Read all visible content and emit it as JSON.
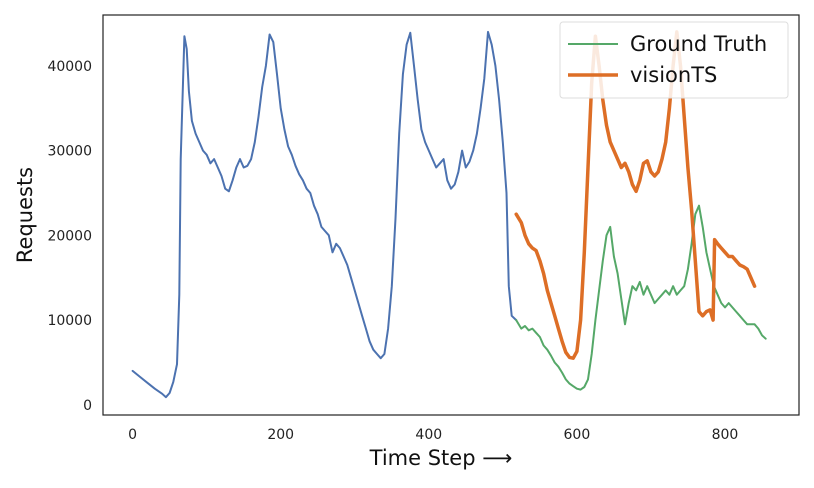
{
  "chart_data": {
    "type": "line",
    "title": "",
    "xlabel": "Time Step ⟶",
    "ylabel": "Requests",
    "xlim": [
      -40,
      900
    ],
    "ylim": [
      -1200,
      46000
    ],
    "grid": false,
    "legend_position": "top-right",
    "x_ticks": [
      0,
      200,
      400,
      600,
      800
    ],
    "y_ticks": [
      0,
      10000,
      20000,
      30000,
      40000
    ],
    "history": {
      "color": "#4c72b0",
      "points": [
        [
          0,
          4000
        ],
        [
          10,
          3300
        ],
        [
          20,
          2600
        ],
        [
          30,
          1900
        ],
        [
          40,
          1300
        ],
        [
          45,
          900
        ],
        [
          50,
          1400
        ],
        [
          55,
          2700
        ],
        [
          60,
          4800
        ],
        [
          63,
          13000
        ],
        [
          65,
          29000
        ],
        [
          68,
          38000
        ],
        [
          70,
          43500
        ],
        [
          73,
          42000
        ],
        [
          76,
          37000
        ],
        [
          80,
          33500
        ],
        [
          85,
          32000
        ],
        [
          90,
          31000
        ],
        [
          95,
          30000
        ],
        [
          100,
          29500
        ],
        [
          105,
          28500
        ],
        [
          110,
          29000
        ],
        [
          115,
          28000
        ],
        [
          120,
          27000
        ],
        [
          125,
          25500
        ],
        [
          130,
          25200
        ],
        [
          135,
          26500
        ],
        [
          140,
          28000
        ],
        [
          145,
          29000
        ],
        [
          150,
          28000
        ],
        [
          155,
          28200
        ],
        [
          160,
          29000
        ],
        [
          165,
          31000
        ],
        [
          170,
          34000
        ],
        [
          175,
          37500
        ],
        [
          180,
          40000
        ],
        [
          185,
          43700
        ],
        [
          190,
          42800
        ],
        [
          195,
          39000
        ],
        [
          200,
          35000
        ],
        [
          205,
          32500
        ],
        [
          210,
          30500
        ],
        [
          215,
          29500
        ],
        [
          220,
          28200
        ],
        [
          225,
          27200
        ],
        [
          230,
          26500
        ],
        [
          235,
          25500
        ],
        [
          240,
          25000
        ],
        [
          245,
          23500
        ],
        [
          250,
          22500
        ],
        [
          255,
          21000
        ],
        [
          260,
          20500
        ],
        [
          265,
          20000
        ],
        [
          270,
          18000
        ],
        [
          275,
          19000
        ],
        [
          280,
          18500
        ],
        [
          285,
          17500
        ],
        [
          290,
          16500
        ],
        [
          295,
          15000
        ],
        [
          300,
          13500
        ],
        [
          305,
          12000
        ],
        [
          310,
          10500
        ],
        [
          315,
          9000
        ],
        [
          320,
          7500
        ],
        [
          325,
          6500
        ],
        [
          330,
          6000
        ],
        [
          335,
          5500
        ],
        [
          340,
          6000
        ],
        [
          345,
          9000
        ],
        [
          350,
          14000
        ],
        [
          355,
          22000
        ],
        [
          360,
          32000
        ],
        [
          365,
          39000
        ],
        [
          370,
          42500
        ],
        [
          375,
          43900
        ],
        [
          380,
          40000
        ],
        [
          385,
          36000
        ],
        [
          390,
          32500
        ],
        [
          395,
          31000
        ],
        [
          400,
          30000
        ],
        [
          405,
          29000
        ],
        [
          410,
          28000
        ],
        [
          415,
          28500
        ],
        [
          420,
          29000
        ],
        [
          425,
          26500
        ],
        [
          430,
          25500
        ],
        [
          435,
          26000
        ],
        [
          440,
          27500
        ],
        [
          445,
          30000
        ],
        [
          450,
          28000
        ],
        [
          455,
          28700
        ],
        [
          460,
          30000
        ],
        [
          465,
          32000
        ],
        [
          470,
          35000
        ],
        [
          475,
          38500
        ],
        [
          480,
          44000
        ],
        [
          485,
          42500
        ],
        [
          490,
          40000
        ],
        [
          495,
          36000
        ],
        [
          500,
          31000
        ],
        [
          505,
          25000
        ],
        [
          508,
          14000
        ],
        [
          512,
          10500
        ],
        [
          518,
          10000
        ]
      ]
    },
    "series": [
      {
        "name": "Ground Truth",
        "color": "#55a868",
        "width": 2,
        "points": [
          [
            518,
            10000
          ],
          [
            525,
            9000
          ],
          [
            530,
            9300
          ],
          [
            535,
            8800
          ],
          [
            540,
            9000
          ],
          [
            545,
            8500
          ],
          [
            550,
            8000
          ],
          [
            555,
            7000
          ],
          [
            560,
            6500
          ],
          [
            565,
            5800
          ],
          [
            570,
            5000
          ],
          [
            575,
            4500
          ],
          [
            580,
            3800
          ],
          [
            585,
            3000
          ],
          [
            590,
            2500
          ],
          [
            595,
            2200
          ],
          [
            600,
            1900
          ],
          [
            605,
            1800
          ],
          [
            610,
            2100
          ],
          [
            615,
            3000
          ],
          [
            620,
            6000
          ],
          [
            625,
            10000
          ],
          [
            630,
            13500
          ],
          [
            635,
            17000
          ],
          [
            640,
            20000
          ],
          [
            645,
            21000
          ],
          [
            650,
            17500
          ],
          [
            655,
            15500
          ],
          [
            660,
            12500
          ],
          [
            665,
            9500
          ],
          [
            670,
            12000
          ],
          [
            675,
            14000
          ],
          [
            680,
            13500
          ],
          [
            685,
            14500
          ],
          [
            690,
            13000
          ],
          [
            695,
            14000
          ],
          [
            700,
            13000
          ],
          [
            705,
            12000
          ],
          [
            710,
            12500
          ],
          [
            715,
            13000
          ],
          [
            720,
            13500
          ],
          [
            725,
            13000
          ],
          [
            730,
            14000
          ],
          [
            735,
            13000
          ],
          [
            740,
            13500
          ],
          [
            745,
            14000
          ],
          [
            750,
            16000
          ],
          [
            755,
            19000
          ],
          [
            760,
            22500
          ],
          [
            765,
            23500
          ],
          [
            770,
            21000
          ],
          [
            775,
            18000
          ],
          [
            780,
            16000
          ],
          [
            785,
            14000
          ],
          [
            790,
            13000
          ],
          [
            795,
            12000
          ],
          [
            800,
            11500
          ],
          [
            805,
            12000
          ],
          [
            810,
            11500
          ],
          [
            815,
            11000
          ],
          [
            820,
            10500
          ],
          [
            825,
            10000
          ],
          [
            830,
            9500
          ],
          [
            835,
            9500
          ],
          [
            840,
            9500
          ],
          [
            845,
            9000
          ],
          [
            850,
            8200
          ],
          [
            855,
            7800
          ]
        ]
      },
      {
        "name": "visionTS",
        "color": "#dd6e26",
        "width": 3.5,
        "points": [
          [
            518,
            22500
          ],
          [
            525,
            21500
          ],
          [
            530,
            20000
          ],
          [
            535,
            19000
          ],
          [
            540,
            18500
          ],
          [
            545,
            18200
          ],
          [
            550,
            17000
          ],
          [
            555,
            15500
          ],
          [
            560,
            13500
          ],
          [
            565,
            12000
          ],
          [
            570,
            10500
          ],
          [
            575,
            9000
          ],
          [
            580,
            7500
          ],
          [
            585,
            6200
          ],
          [
            590,
            5600
          ],
          [
            595,
            5500
          ],
          [
            600,
            6300
          ],
          [
            605,
            10000
          ],
          [
            610,
            18000
          ],
          [
            615,
            28000
          ],
          [
            620,
            38000
          ],
          [
            625,
            43500
          ],
          [
            630,
            40000
          ],
          [
            635,
            36000
          ],
          [
            640,
            33000
          ],
          [
            645,
            31000
          ],
          [
            650,
            30000
          ],
          [
            655,
            29000
          ],
          [
            660,
            28000
          ],
          [
            665,
            28500
          ],
          [
            670,
            27500
          ],
          [
            675,
            26000
          ],
          [
            680,
            25200
          ],
          [
            685,
            26500
          ],
          [
            690,
            28500
          ],
          [
            695,
            28800
          ],
          [
            700,
            27500
          ],
          [
            705,
            27000
          ],
          [
            710,
            27500
          ],
          [
            715,
            29000
          ],
          [
            720,
            31000
          ],
          [
            725,
            35000
          ],
          [
            730,
            40000
          ],
          [
            735,
            44000
          ],
          [
            740,
            40000
          ],
          [
            745,
            34000
          ],
          [
            750,
            28000
          ],
          [
            755,
            23000
          ],
          [
            760,
            17000
          ],
          [
            765,
            11000
          ],
          [
            770,
            10500
          ],
          [
            775,
            11000
          ],
          [
            780,
            11200
          ],
          [
            784,
            10000
          ],
          [
            786,
            19500
          ],
          [
            790,
            19000
          ],
          [
            795,
            18500
          ],
          [
            800,
            18000
          ],
          [
            805,
            17500
          ],
          [
            810,
            17500
          ],
          [
            815,
            17000
          ],
          [
            820,
            16500
          ],
          [
            825,
            16300
          ],
          [
            830,
            16000
          ],
          [
            835,
            15000
          ],
          [
            840,
            14000
          ]
        ]
      }
    ]
  }
}
